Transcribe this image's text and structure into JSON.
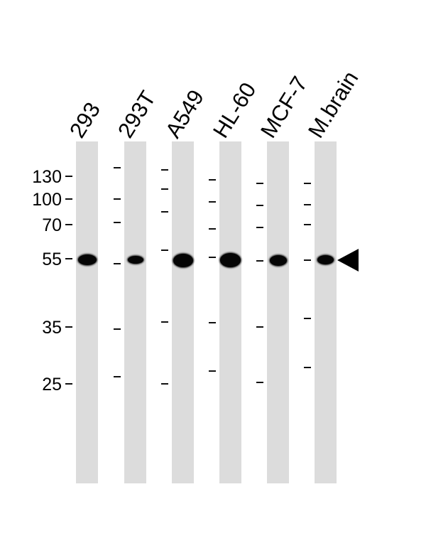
{
  "lanes": [
    "293",
    "293T",
    "A549",
    "HL-60",
    "MCF-7",
    "M.brain"
  ],
  "mw_markers": [
    "130",
    "100",
    "70",
    "55",
    "35",
    "25"
  ],
  "band_arrow": "arrow-pointing-left-icon"
}
